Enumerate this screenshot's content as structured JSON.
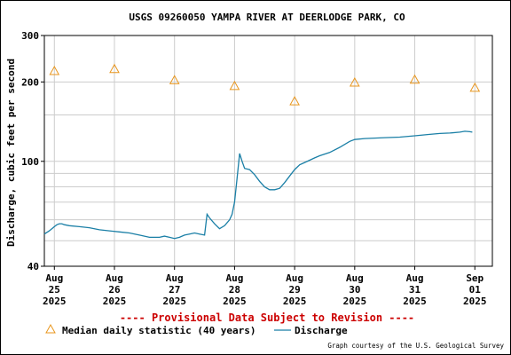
{
  "chart_data": {
    "type": "line",
    "title": "USGS 09260050 YAMPA RIVER AT DEERLODGE PARK, CO",
    "ylabel": "Discharge, cubic feet per second",
    "xlabel": "",
    "y_scale": "log",
    "ylim": [
      40,
      300
    ],
    "y_ticks": [
      {
        "value": 300,
        "label": "300"
      },
      {
        "value": 200,
        "label": "200"
      },
      {
        "value": 100,
        "label": "100"
      },
      {
        "value": 40,
        "label": "40"
      }
    ],
    "y_grid": [
      50,
      60,
      70,
      80,
      90,
      150
    ],
    "xlim": [
      "2025-08-24T20:00",
      "2025-09-01T07:00"
    ],
    "x_ticks": [
      {
        "date": "2025-08-25",
        "line1": "Aug",
        "line2": "25",
        "line3": "2025"
      },
      {
        "date": "2025-08-26",
        "line1": "Aug",
        "line2": "26",
        "line3": "2025"
      },
      {
        "date": "2025-08-27",
        "line1": "Aug",
        "line2": "27",
        "line3": "2025"
      },
      {
        "date": "2025-08-28",
        "line1": "Aug",
        "line2": "28",
        "line3": "2025"
      },
      {
        "date": "2025-08-29",
        "line1": "Aug",
        "line2": "29",
        "line3": "2025"
      },
      {
        "date": "2025-08-30",
        "line1": "Aug",
        "line2": "30",
        "line3": "2025"
      },
      {
        "date": "2025-08-31",
        "line1": "Aug",
        "line2": "31",
        "line3": "2025"
      },
      {
        "date": "2025-09-01",
        "line1": "Sep",
        "line2": "01",
        "line3": "2025"
      }
    ],
    "grid": true,
    "series": [
      {
        "name": "Discharge",
        "color": "#1a7fa6",
        "style": "line",
        "points": [
          [
            "2025-08-24T20:00",
            53
          ],
          [
            "2025-08-24T22:00",
            54.5
          ],
          [
            "2025-08-25T00:00",
            56.5
          ],
          [
            "2025-08-25T01:00",
            57.5
          ],
          [
            "2025-08-25T02:00",
            58
          ],
          [
            "2025-08-25T03:00",
            58
          ],
          [
            "2025-08-25T04:00",
            57.5
          ],
          [
            "2025-08-25T06:00",
            57
          ],
          [
            "2025-08-25T10:00",
            56.5
          ],
          [
            "2025-08-25T14:00",
            56
          ],
          [
            "2025-08-25T18:00",
            55
          ],
          [
            "2025-08-25T22:00",
            54.5
          ],
          [
            "2025-08-26T02:00",
            54
          ],
          [
            "2025-08-26T06:00",
            53.5
          ],
          [
            "2025-08-26T10:00",
            52.5
          ],
          [
            "2025-08-26T14:00",
            51.5
          ],
          [
            "2025-08-26T18:00",
            51.5
          ],
          [
            "2025-08-26T20:00",
            52
          ],
          [
            "2025-08-26T22:00",
            51.5
          ],
          [
            "2025-08-27T00:00",
            51
          ],
          [
            "2025-08-27T02:00",
            51.5
          ],
          [
            "2025-08-27T04:00",
            52.5
          ],
          [
            "2025-08-27T06:00",
            53
          ],
          [
            "2025-08-27T08:00",
            53.5
          ],
          [
            "2025-08-27T10:00",
            53
          ],
          [
            "2025-08-27T12:00",
            52.5
          ],
          [
            "2025-08-27T13:00",
            63
          ],
          [
            "2025-08-27T14:00",
            61
          ],
          [
            "2025-08-27T16:00",
            58
          ],
          [
            "2025-08-27T18:00",
            55.5
          ],
          [
            "2025-08-27T20:00",
            57
          ],
          [
            "2025-08-27T22:00",
            60
          ],
          [
            "2025-08-27T23:00",
            63
          ],
          [
            "2025-08-28T00:00",
            70
          ],
          [
            "2025-08-28T01:00",
            86
          ],
          [
            "2025-08-28T02:00",
            107
          ],
          [
            "2025-08-28T03:00",
            100
          ],
          [
            "2025-08-28T04:00",
            94
          ],
          [
            "2025-08-28T06:00",
            93
          ],
          [
            "2025-08-28T08:00",
            89
          ],
          [
            "2025-08-28T10:00",
            84
          ],
          [
            "2025-08-28T12:00",
            80
          ],
          [
            "2025-08-28T14:00",
            78
          ],
          [
            "2025-08-28T16:00",
            78
          ],
          [
            "2025-08-28T18:00",
            79
          ],
          [
            "2025-08-28T20:00",
            83
          ],
          [
            "2025-08-28T22:00",
            88
          ],
          [
            "2025-08-29T00:00",
            93
          ],
          [
            "2025-08-29T02:00",
            97
          ],
          [
            "2025-08-29T04:00",
            99
          ],
          [
            "2025-08-29T06:00",
            101
          ],
          [
            "2025-08-29T08:00",
            103
          ],
          [
            "2025-08-29T10:00",
            105
          ],
          [
            "2025-08-29T14:00",
            108
          ],
          [
            "2025-08-29T18:00",
            113
          ],
          [
            "2025-08-29T22:00",
            119
          ],
          [
            "2025-08-30T00:00",
            121
          ],
          [
            "2025-08-30T04:00",
            122
          ],
          [
            "2025-08-30T08:00",
            122.5
          ],
          [
            "2025-08-30T12:00",
            123
          ],
          [
            "2025-08-30T18:00",
            123.5
          ],
          [
            "2025-08-31T00:00",
            125
          ],
          [
            "2025-08-31T06:00",
            126.5
          ],
          [
            "2025-08-31T10:00",
            127.5
          ],
          [
            "2025-08-31T14:00",
            128
          ],
          [
            "2025-08-31T18:00",
            129
          ],
          [
            "2025-08-31T20:00",
            130
          ],
          [
            "2025-08-31T22:00",
            129.5
          ],
          [
            "2025-08-31T23:00",
            129
          ]
        ]
      },
      {
        "name": "Median daily statistic (40 years)",
        "color": "#e8961e",
        "style": "marker",
        "points": [
          [
            "2025-08-25T00:00",
            220
          ],
          [
            "2025-08-26T00:00",
            224
          ],
          [
            "2025-08-27T00:00",
            203
          ],
          [
            "2025-08-28T00:00",
            193
          ],
          [
            "2025-08-29T00:00",
            169
          ],
          [
            "2025-08-30T00:00",
            199
          ],
          [
            "2025-08-31T00:00",
            204
          ],
          [
            "2025-09-01T00:00",
            190
          ]
        ]
      }
    ],
    "legend": [
      {
        "label": "Median daily statistic (40 years)",
        "marker": "triangle"
      },
      {
        "label": "Discharge",
        "marker": "line"
      }
    ],
    "annotations": {
      "provisional": "---- Provisional Data Subject to Revision ----",
      "provisional_color": "#cc0000",
      "credit": "Graph courtesy of the U.S. Geological Survey"
    }
  }
}
